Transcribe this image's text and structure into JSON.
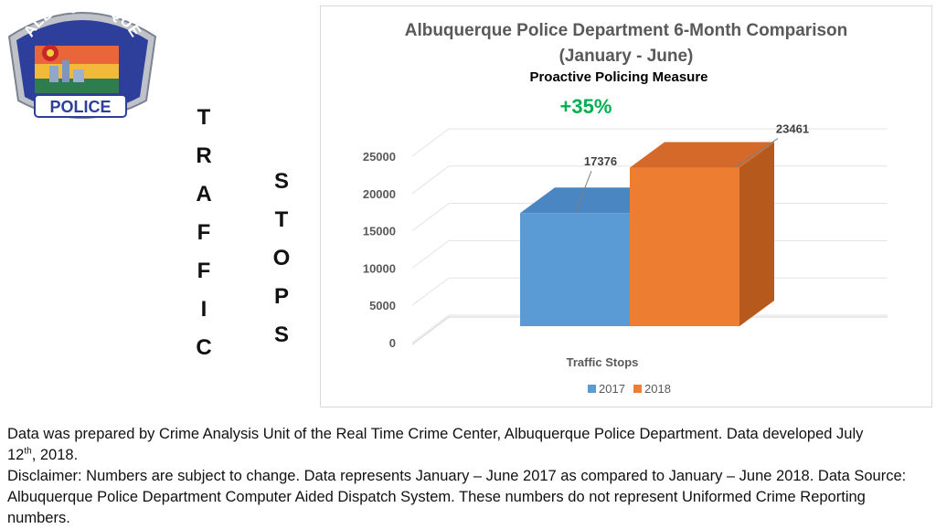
{
  "logo": {
    "top_text": "ALBUQUERQUE",
    "bottom_text": "POLICE"
  },
  "side_words": {
    "first": [
      "T",
      "R",
      "A",
      "F",
      "F",
      "I",
      "C"
    ],
    "second": [
      "S",
      "T",
      "O",
      "P",
      "S"
    ]
  },
  "chart_data": {
    "type": "bar",
    "title_line1": "Albuquerque Police Department 6-Month Comparison",
    "title_line2": "(January - June)",
    "subtitle": "Proactive Policing Measure",
    "change_label": "+35%",
    "categories": [
      "Traffic Stops"
    ],
    "series": [
      {
        "name": "2017",
        "values": [
          17376
        ],
        "label": "17376"
      },
      {
        "name": "2018",
        "values": [
          23461
        ],
        "label": "23461"
      }
    ],
    "y_ticks": [
      "0",
      "5000",
      "10000",
      "15000",
      "20000",
      "25000"
    ],
    "ylim": [
      0,
      25000
    ],
    "xlabel": "Traffic Stops",
    "legend_position": "bottom"
  },
  "colors": {
    "s2017_front": "#5b9bd5",
    "s2017_side": "#3f77ad",
    "s2017_top": "#4a86c2",
    "s2018_front": "#ed7d31",
    "s2018_side": "#b55a1c",
    "s2018_top": "#d5692a",
    "change_green": "#00b050"
  },
  "footer": {
    "line1_a": "Data was prepared by Crime Analysis Unit of the Real Time Crime Center, Albuquerque Police Department.  Data developed July",
    "line1_b": "12",
    "line1_sup": "th",
    "line1_c": ", 2018.",
    "line2": "Disclaimer: Numbers are subject to change.  Data represents January – June 2017 as compared to January – June 2018.  Data Source: Albuquerque Police Department Computer Aided Dispatch System.  These numbers do not represent Uniformed Crime Reporting numbers."
  }
}
